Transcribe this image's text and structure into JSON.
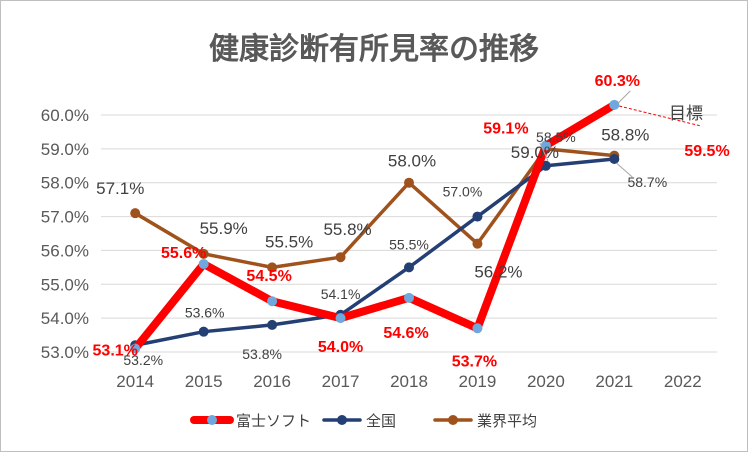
{
  "chart_data": {
    "type": "line",
    "title": "健康診断有所見率の推移",
    "categories": [
      "2014",
      "2015",
      "2016",
      "2017",
      "2018",
      "2019",
      "2020",
      "2021",
      "2022"
    ],
    "ylim": [
      0.53,
      0.6
    ],
    "yticks": [
      "53.0%",
      "54.0%",
      "55.0%",
      "56.0%",
      "57.0%",
      "58.0%",
      "59.0%",
      "60.0%"
    ],
    "grid": true,
    "legend_position": "bottom",
    "series": [
      {
        "name": "富士ソフト",
        "color": "#ff0000",
        "marker_color": "#6fa8dc",
        "values": [
          0.531,
          0.556,
          0.545,
          0.54,
          0.546,
          0.537,
          0.591,
          0.603,
          null
        ],
        "labels": [
          "53.1%",
          "55.6%",
          "54.5%",
          "54.0%",
          "54.6%",
          "53.7%",
          "59.1%",
          "60.3%",
          ""
        ]
      },
      {
        "name": "全国",
        "color": "#243f73",
        "marker_color": "#243f73",
        "values": [
          0.532,
          0.536,
          0.538,
          0.541,
          0.555,
          0.57,
          0.585,
          0.587,
          null
        ],
        "labels": [
          "53.2%",
          "53.6%",
          "53.8%",
          "54.1%",
          "55.5%",
          "57.0%",
          "58.5%",
          "58.7%",
          ""
        ]
      },
      {
        "name": "業界平均",
        "color": "#a0521d",
        "marker_color": "#a0521d",
        "values": [
          0.571,
          0.559,
          0.555,
          0.558,
          0.58,
          0.562,
          0.59,
          0.588,
          null
        ],
        "labels": [
          "57.1%",
          "55.9%",
          "55.5%",
          "55.8%",
          "58.0%",
          "56.2%",
          "59.0%",
          "58.8%",
          ""
        ]
      }
    ],
    "target": {
      "label": "目標",
      "value": 0.595,
      "value_label": "59.5%"
    }
  }
}
